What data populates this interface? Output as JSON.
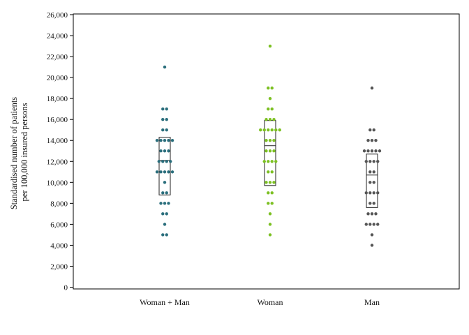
{
  "chart_data": {
    "type": "scatter",
    "subtype": "dot-strip plot with interquartile box and median line",
    "title": "",
    "ylabel_line1": "Standardised number of patients",
    "ylabel_line2": "per 100,000 insured persons",
    "xlabel": "",
    "ylim": [
      0,
      26000
    ],
    "yticks": [
      0,
      2000,
      4000,
      6000,
      8000,
      10000,
      12000,
      14000,
      16000,
      18000,
      20000,
      22000,
      24000,
      26000
    ],
    "ytick_labels": [
      "0",
      "2,000",
      "4,000",
      "6,000",
      "8,000",
      "10,000",
      "12,000",
      "14,000",
      "16,000",
      "18,000",
      "20,000",
      "22,000",
      "24,000",
      "26,000"
    ],
    "categories": [
      "Woman + Man",
      "Woman",
      "Man"
    ],
    "colors": [
      "#2a6e7c",
      "#7cc022",
      "#555555"
    ],
    "grid": false,
    "legend": "none",
    "series": [
      {
        "points": [
          21000,
          17000,
          17000,
          16000,
          16000,
          15000,
          15000,
          14000,
          14000,
          14000,
          14000,
          14000,
          13000,
          13000,
          13000,
          12000,
          12000,
          12000,
          12000,
          11000,
          11000,
          11000,
          11000,
          11000,
          10000,
          9000,
          9000,
          8000,
          8000,
          8000,
          7000,
          7000,
          6000,
          5000,
          5000
        ],
        "q1": 8800,
        "median": 12100,
        "q3": 14300
      },
      {
        "points": [
          23000,
          19000,
          19000,
          18000,
          17000,
          17000,
          16000,
          16000,
          16000,
          15000,
          15000,
          15000,
          15000,
          15000,
          15000,
          14000,
          14000,
          14000,
          13000,
          13000,
          13000,
          12000,
          12000,
          12000,
          12000,
          11000,
          11000,
          10000,
          10000,
          10000,
          9000,
          9000,
          8000,
          8000,
          7000,
          6000,
          5000
        ],
        "q1": 9700,
        "median": 13500,
        "q3": 15900
      },
      {
        "points": [
          19000,
          15000,
          15000,
          14000,
          14000,
          14000,
          13000,
          13000,
          13000,
          13000,
          13000,
          12000,
          12000,
          12000,
          12000,
          11000,
          11000,
          10000,
          10000,
          9000,
          9000,
          9000,
          9000,
          8000,
          8000,
          7000,
          7000,
          7000,
          6000,
          6000,
          6000,
          6000,
          5000,
          4000
        ],
        "q1": 7600,
        "median": 10700,
        "q3": 12700
      }
    ]
  }
}
